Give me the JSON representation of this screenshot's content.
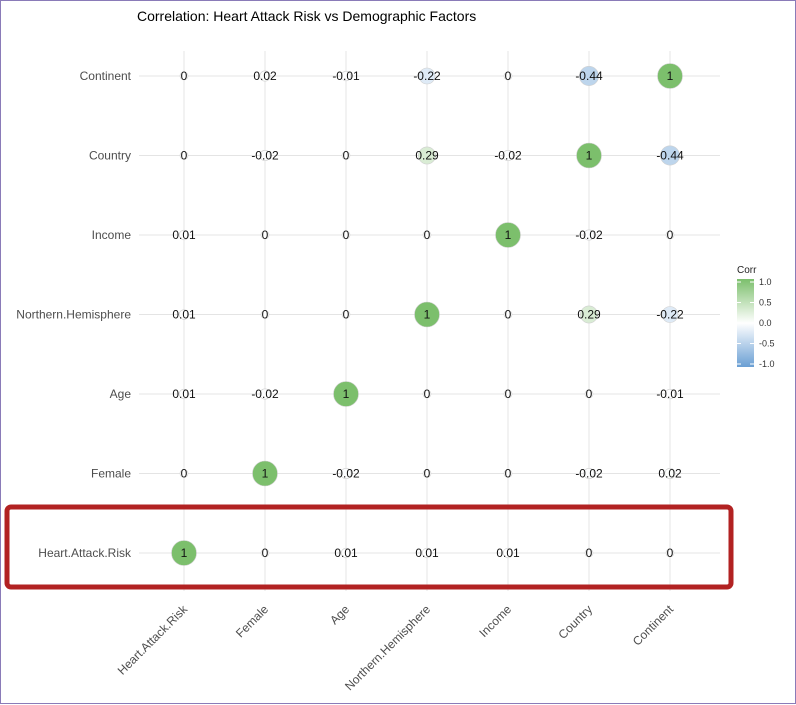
{
  "chart_data": {
    "type": "heatmap",
    "title": "Correlation: Heart Attack Risk vs Demographic Factors",
    "variables": [
      "Heart.Attack.Risk",
      "Female",
      "Age",
      "Northern.Hemisphere",
      "Income",
      "Country",
      "Continent"
    ],
    "matrix": [
      [
        1,
        0,
        0.01,
        0.01,
        0.01,
        0,
        0
      ],
      [
        0,
        1,
        -0.02,
        0,
        0,
        -0.02,
        0.02
      ],
      [
        0.01,
        -0.02,
        1,
        0,
        0,
        0,
        -0.01
      ],
      [
        0.01,
        0,
        0,
        1,
        0,
        0.29,
        -0.22
      ],
      [
        0.01,
        0,
        0,
        0,
        1,
        -0.02,
        0
      ],
      [
        0,
        -0.02,
        0,
        0.29,
        -0.02,
        1,
        -0.44
      ],
      [
        0,
        0.02,
        -0.01,
        -0.22,
        0,
        -0.44,
        1
      ]
    ],
    "legend": {
      "title": "Corr",
      "ticks": [
        "1.0",
        "0.5",
        "0.0",
        "-0.5",
        "-1.0"
      ],
      "low_color": "#6a9fd4",
      "mid_color": "#ffffff",
      "high_color": "#7cbf6c",
      "position": "right"
    },
    "grid": true
  },
  "highlight": {
    "row": "Heart.Attack.Risk",
    "color": "#b22222"
  }
}
